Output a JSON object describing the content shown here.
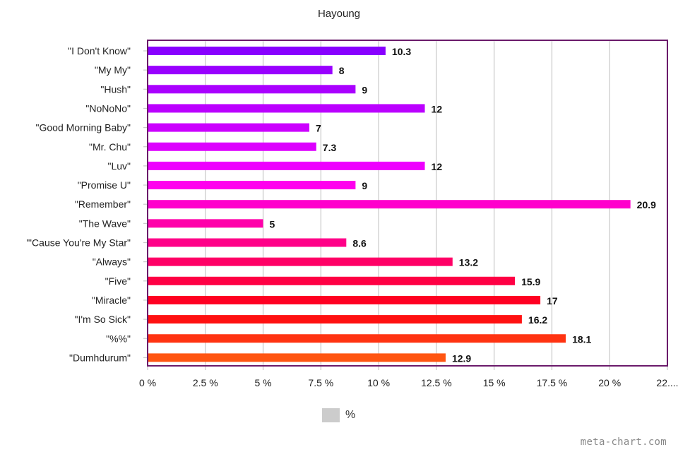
{
  "chart_data": {
    "type": "bar",
    "orientation": "horizontal",
    "title": "Hayoung",
    "xlabel": "",
    "ylabel": "",
    "xlim": [
      0,
      22.5
    ],
    "grid": true,
    "categories": [
      "\"I Don't Know\"",
      "\"My My\"",
      "\"Hush\"",
      "\"NoNoNo\"",
      "\"Good Morning Baby\"",
      "\"Mr. Chu\"",
      "\"Luv\"",
      "\"Promise U\"",
      "\"Remember\"",
      "\"The Wave\"",
      "\"'Cause You're My Star\"",
      "\"Always\"",
      "\"Five\"",
      "\"Miracle\"",
      "\"I'm So Sick\"",
      "\"%%\"",
      "\"Dumhdurum\""
    ],
    "values": [
      10.3,
      8,
      9,
      12,
      7,
      7.3,
      12,
      9,
      20.9,
      5,
      8.6,
      13.2,
      15.9,
      17,
      16.2,
      18.1,
      12.9
    ],
    "data_labels": [
      "10.3",
      "8",
      "9",
      "12",
      "7",
      "7.3",
      "12",
      "9",
      "20.9",
      "5",
      "8.6",
      "13.2",
      "15.9",
      "17",
      "16.2",
      "18.1",
      "12.9"
    ],
    "colors": [
      "#8800ff",
      "#9900ff",
      "#aa00ff",
      "#bb00ff",
      "#cc00ff",
      "#dd00ff",
      "#ee00ff",
      "#ff00ee",
      "#ff00cc",
      "#ff00aa",
      "#ff0088",
      "#ff0066",
      "#ff0044",
      "#ff0022",
      "#ff1111",
      "#ff3311",
      "#ff5511"
    ],
    "x_ticks": [
      0,
      2.5,
      5,
      7.5,
      10,
      12.5,
      15,
      17.5,
      20,
      22.5
    ],
    "x_tick_labels": [
      "0 %",
      "2.5 %",
      "5 %",
      "7.5 %",
      "10 %",
      "12.5 %",
      "15 %",
      "17.5 %",
      "20 %",
      "22...."
    ],
    "legend": {
      "label": "%",
      "position": "bottom-center",
      "color": "#cccccc"
    },
    "frame_color": "#6b1a6b",
    "grid_color": "#c8c8c8"
  },
  "watermark": "meta-chart.com"
}
